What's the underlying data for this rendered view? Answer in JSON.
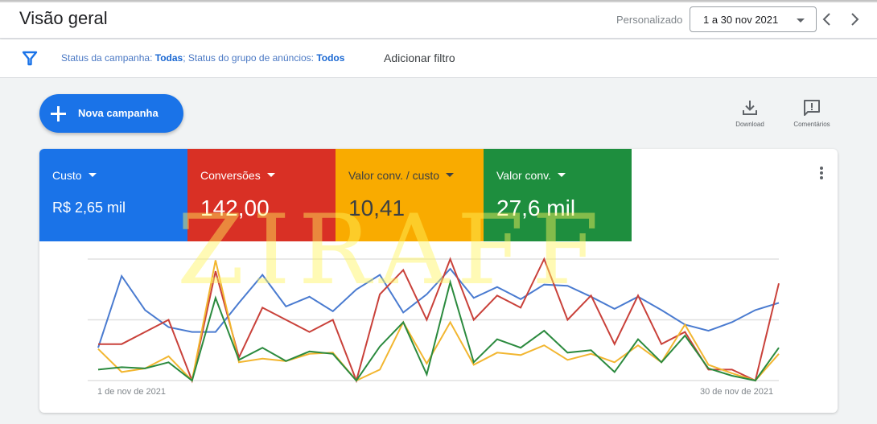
{
  "header": {
    "title": "Visão geral",
    "date_range_label": "Personalizado",
    "date_range_value": "1 a 30 nov 2021",
    "prev_icon": "chevron-left-icon",
    "next_icon": "chevron-right-icon"
  },
  "filters": {
    "icon": "filter-icon",
    "campaign_status_label": "Status da campanha: ",
    "campaign_status_value": "Todas",
    "separator": "; ",
    "adgroup_status_label": "Status do grupo de anúncios: ",
    "adgroup_status_value": "Todos",
    "add_filter": "Adicionar filtro"
  },
  "actions": {
    "new_campaign": "Nova campanha",
    "download": "Download",
    "comments": "Comentários"
  },
  "metrics": [
    {
      "label": "Custo",
      "value": "R$ 2,65 mil",
      "color": "#1a73e8",
      "text_color": "#ffffff"
    },
    {
      "label": "Conversões",
      "value": "142,00",
      "color": "#d93025",
      "text_color": "#ffffff"
    },
    {
      "label": "Valor conv. / custo",
      "value": "10,41",
      "color": "#f9ab00",
      "text_color": "#3c4043"
    },
    {
      "label": "Valor conv.",
      "value": "27,6 mil",
      "color": "#1e8e3e",
      "text_color": "#ffffff"
    }
  ],
  "watermark": "ZIRAFF",
  "chart_data": {
    "type": "line",
    "title": "",
    "x_start_label": "1 de nov de 2021",
    "x_end_label": "30 de nov de 2021",
    "x": [
      1,
      2,
      3,
      4,
      5,
      6,
      7,
      8,
      9,
      10,
      11,
      12,
      13,
      14,
      15,
      16,
      17,
      18,
      19,
      20,
      21,
      22,
      23,
      24,
      25,
      26,
      27,
      28,
      29,
      30
    ],
    "ylim": [
      0,
      100
    ],
    "y_normalized": true,
    "grid": true,
    "series": [
      {
        "name": "Custo",
        "color": "#4a7bd0",
        "values": [
          27,
          86,
          58,
          44,
          40,
          40,
          64,
          87,
          61,
          69,
          57,
          75,
          87,
          56,
          71,
          92,
          68,
          77,
          67,
          79,
          78,
          69,
          59,
          69,
          58,
          46,
          41,
          48,
          58,
          64
        ]
      },
      {
        "name": "Conversões",
        "color": "#c9413a",
        "values": [
          30,
          30,
          40,
          50,
          0,
          90,
          19,
          60,
          50,
          40,
          50,
          0,
          71,
          91,
          50,
          100,
          50,
          70,
          60,
          100,
          50,
          70,
          30,
          70,
          30,
          40,
          9,
          9,
          0,
          80
        ]
      },
      {
        "name": "Valor conv. / custo",
        "color": "#f2b630",
        "values": [
          26,
          7,
          10,
          20,
          0,
          99,
          15,
          18,
          16,
          22,
          23,
          0,
          9,
          48,
          14,
          48,
          13,
          23,
          21,
          29,
          17,
          22,
          15,
          29,
          15,
          46,
          13,
          6,
          0,
          22
        ]
      },
      {
        "name": "Valor conv.",
        "color": "#2b8a3e",
        "values": [
          9,
          11,
          10,
          15,
          0,
          68,
          17,
          27,
          16,
          24,
          22,
          0,
          28,
          48,
          5,
          81,
          15,
          34,
          27,
          41,
          23,
          25,
          7,
          34,
          15,
          37,
          10,
          4,
          0,
          27
        ]
      }
    ]
  }
}
